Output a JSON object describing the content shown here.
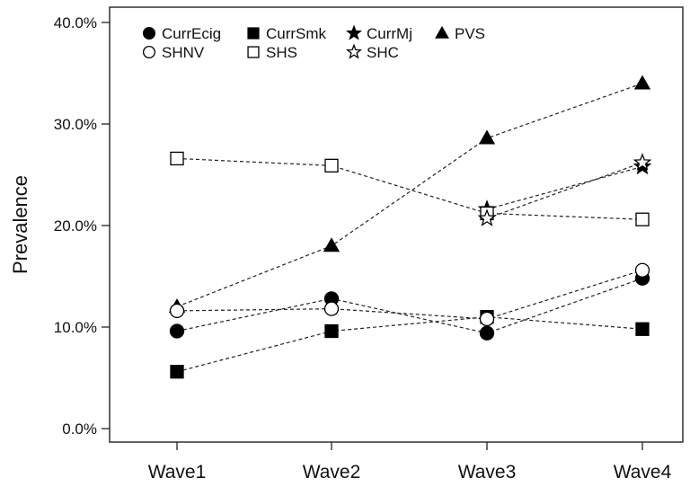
{
  "chart_data": {
    "type": "line",
    "title": "",
    "xlabel": "",
    "ylabel": "Prevalence",
    "categories": [
      "Wave1",
      "Wave2",
      "Wave3",
      "Wave4"
    ],
    "ylim": [
      0,
      40
    ],
    "yticks": [
      0,
      10,
      20,
      30,
      40
    ],
    "ytick_labels": [
      "0.0%",
      "10.0%",
      "20.0%",
      "30.0%",
      "40.0%"
    ],
    "line_style": "dashed",
    "grid": false,
    "legend_position": "top-left",
    "series": [
      {
        "name": "CurrEcig",
        "marker": "filled-circle",
        "values": [
          9.6,
          12.8,
          9.4,
          14.8
        ]
      },
      {
        "name": "CurrSmk",
        "marker": "filled-square",
        "values": [
          5.6,
          9.6,
          11.0,
          9.8
        ]
      },
      {
        "name": "CurrMj",
        "marker": "filled-star",
        "values": [
          null,
          null,
          21.6,
          25.8
        ]
      },
      {
        "name": "PVS",
        "marker": "filled-triangle",
        "values": [
          12.0,
          18.0,
          28.6,
          34.0
        ]
      },
      {
        "name": "SHNV",
        "marker": "open-circle",
        "values": [
          11.6,
          11.8,
          10.8,
          15.6
        ]
      },
      {
        "name": "SHS",
        "marker": "open-square",
        "values": [
          26.6,
          25.9,
          21.2,
          20.6
        ]
      },
      {
        "name": "SHC",
        "marker": "open-star",
        "values": [
          null,
          null,
          20.7,
          26.2
        ]
      }
    ]
  }
}
